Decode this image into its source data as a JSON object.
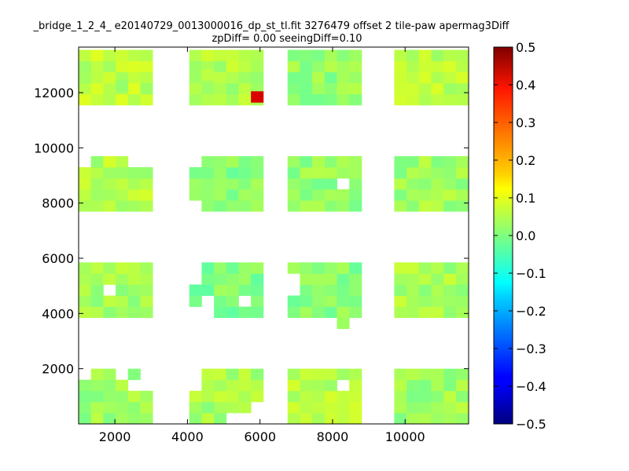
{
  "chart_data": {
    "type": "heatmap",
    "title": "_bridge_1_2_4_ e20140729_0013000016_dp_st_tl.fit 3276479 offset 2 tile-paw apermag3Diff",
    "subtitle": "zpDiff= 0.00 seeingDiff=0.10",
    "xlim": [
      1000,
      11750
    ],
    "ylim": [
      0,
      13650
    ],
    "x_ticks": [
      2000,
      4000,
      6000,
      8000,
      10000
    ],
    "y_ticks": [
      2000,
      4000,
      6000,
      8000,
      10000,
      12000
    ],
    "cell_size": [
      340,
      400
    ],
    "colorbar": {
      "colormap": "jet",
      "range": [
        -0.5,
        0.5
      ],
      "ticks": [
        0.5,
        0.4,
        0.3,
        0.2,
        0.1,
        0.0,
        -0.1,
        -0.2,
        -0.3,
        -0.4,
        -0.5
      ],
      "tick_labels": [
        "0.5",
        "0.4",
        "0.3",
        "0.2",
        "0.1",
        "0.0",
        "−0.1",
        "−0.2",
        "−0.3",
        "−0.4",
        "−0.5"
      ]
    },
    "blocks": [
      {
        "x": [
          1000,
          3040
        ],
        "y": [
          0,
          2000
        ],
        "value": 0.03
      },
      {
        "x": [
          4050,
          6090
        ],
        "y": [
          0,
          2000
        ],
        "value": 0.04
      },
      {
        "x": [
          6760,
          8800
        ],
        "y": [
          0,
          2000
        ],
        "value": 0.05
      },
      {
        "x": [
          9700,
          11750
        ],
        "y": [
          0,
          2000
        ],
        "value": 0.03
      },
      {
        "x": [
          1000,
          3040
        ],
        "y": [
          3850,
          5850
        ],
        "value": 0.04
      },
      {
        "x": [
          4050,
          6090
        ],
        "y": [
          3850,
          5850
        ],
        "value": 0.0
      },
      {
        "x": [
          6760,
          8800
        ],
        "y": [
          3850,
          5850
        ],
        "value": 0.01
      },
      {
        "x": [
          9700,
          11750
        ],
        "y": [
          3850,
          5850
        ],
        "value": 0.04
      },
      {
        "x": [
          1000,
          3040
        ],
        "y": [
          7700,
          9700
        ],
        "value": 0.05
      },
      {
        "x": [
          4050,
          6090
        ],
        "y": [
          7700,
          9700
        ],
        "value": 0.01
      },
      {
        "x": [
          6760,
          8800
        ],
        "y": [
          7700,
          9700
        ],
        "value": 0.02
      },
      {
        "x": [
          9700,
          11750
        ],
        "y": [
          7700,
          9700
        ],
        "value": 0.03
      },
      {
        "x": [
          1000,
          3040
        ],
        "y": [
          11550,
          13650
        ],
        "value": 0.06
      },
      {
        "x": [
          4050,
          6090
        ],
        "y": [
          11550,
          13650
        ],
        "value": 0.05
      },
      {
        "x": [
          6760,
          8800
        ],
        "y": [
          11550,
          13650
        ],
        "value": 0.02
      },
      {
        "x": [
          9700,
          11750
        ],
        "y": [
          11550,
          13650
        ],
        "value": 0.06
      }
    ],
    "missing_cells": [
      {
        "x": 1170,
        "y": 13450
      },
      {
        "x": 1170,
        "y": 13050
      },
      {
        "x": 1170,
        "y": 12650
      },
      {
        "x": 2190,
        "y": 13450
      },
      {
        "x": 2530,
        "y": 13450
      },
      {
        "x": 2870,
        "y": 13450
      },
      {
        "x": 2870,
        "y": 12250
      },
      {
        "x": 2870,
        "y": 11850
      },
      {
        "x": 4220,
        "y": 13450
      },
      {
        "x": 5580,
        "y": 13450
      },
      {
        "x": 5580,
        "y": 13050
      },
      {
        "x": 5580,
        "y": 12650
      },
      {
        "x": 5920,
        "y": 12250
      },
      {
        "x": 4900,
        "y": 12250
      },
      {
        "x": 6930,
        "y": 13450
      },
      {
        "x": 6930,
        "y": 13050
      },
      {
        "x": 6930,
        "y": 12650
      },
      {
        "x": 11240,
        "y": 13450
      },
      {
        "x": 11580,
        "y": 13450
      },
      {
        "x": 11580,
        "y": 13050
      },
      {
        "x": 1170,
        "y": 9500
      },
      {
        "x": 2530,
        "y": 9500
      },
      {
        "x": 2870,
        "y": 9500
      },
      {
        "x": 4220,
        "y": 9500
      },
      {
        "x": 4220,
        "y": 7900
      },
      {
        "x": 8290,
        "y": 8700
      },
      {
        "x": 11240,
        "y": 9500
      },
      {
        "x": 11580,
        "y": 9500
      },
      {
        "x": 11580,
        "y": 9100
      },
      {
        "x": 1850,
        "y": 4850
      },
      {
        "x": 4220,
        "y": 5650
      },
      {
        "x": 4220,
        "y": 5250
      },
      {
        "x": 4220,
        "y": 4050
      },
      {
        "x": 4560,
        "y": 4450
      },
      {
        "x": 4560,
        "y": 4050
      },
      {
        "x": 5580,
        "y": 4450
      },
      {
        "x": 6930,
        "y": 5250
      },
      {
        "x": 6930,
        "y": 4850
      },
      {
        "x": 4220,
        "y": 1800
      },
      {
        "x": 4220,
        "y": 1400
      },
      {
        "x": 5580,
        "y": 200
      },
      {
        "x": 5920,
        "y": 200
      },
      {
        "x": 5920,
        "y": 600
      },
      {
        "x": 5240,
        "y": 200
      },
      {
        "x": 8290,
        "y": 1400
      },
      {
        "x": 2190,
        "y": 1800
      },
      {
        "x": 2870,
        "y": 1800
      },
      {
        "x": 2530,
        "y": 1400
      },
      {
        "x": 2870,
        "y": 1400
      },
      {
        "x": 1170,
        "y": 1800
      },
      {
        "x": 11580,
        "y": 1800
      }
    ],
    "extra_cells": [
      {
        "x": 5920,
        "y": 11850,
        "value": 0.41
      },
      {
        "x": 8290,
        "y": 3650,
        "value": 0.03
      },
      {
        "x": 2190,
        "y": 12250,
        "value": 0.02
      },
      {
        "x": 4560,
        "y": 12650,
        "value": 0.06
      }
    ]
  }
}
